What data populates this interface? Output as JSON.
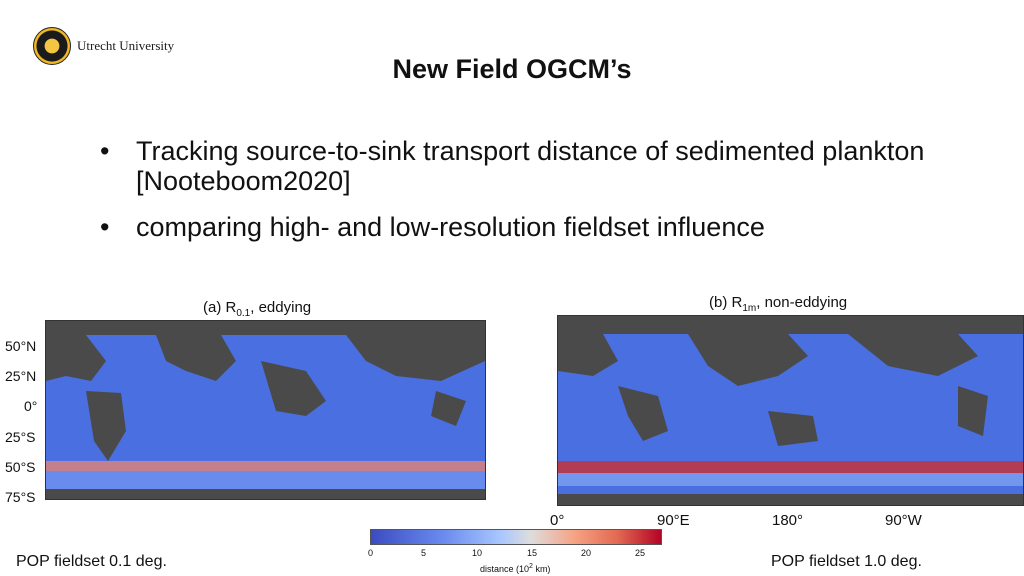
{
  "logo": {
    "text": "Utrecht University",
    "icon": "university-seal-icon"
  },
  "title": "New Field OGCM’s",
  "bullets": [
    "Tracking source-to-sink transport distance of sedimented plankton [Nooteboom2020]",
    "comparing high- and low-resolution fieldset influence"
  ],
  "maps": {
    "left": {
      "prefix": "(a) R",
      "sub": "0.1",
      "suffix": ", eddying"
    },
    "right": {
      "prefix": "(b) R",
      "sub": "1m",
      "suffix": ", non-eddying"
    }
  },
  "lat_ticks": [
    "50°N",
    "25°N",
    "0°",
    "25°S",
    "50°S",
    "75°S"
  ],
  "lon_ticks": [
    "0°",
    "90°E",
    "180°",
    "90°W"
  ],
  "colorbar": {
    "ticks": [
      "0",
      "5",
      "10",
      "15",
      "20",
      "25"
    ],
    "label_prefix": "distance (10",
    "label_sup": "2",
    "label_suffix": " km)",
    "colors": [
      "#3b4cc0",
      "#dddddd",
      "#b40426"
    ]
  },
  "footer": {
    "left": "POP fieldset 0.1 deg.",
    "right": "POP fieldset 1.0 deg."
  }
}
